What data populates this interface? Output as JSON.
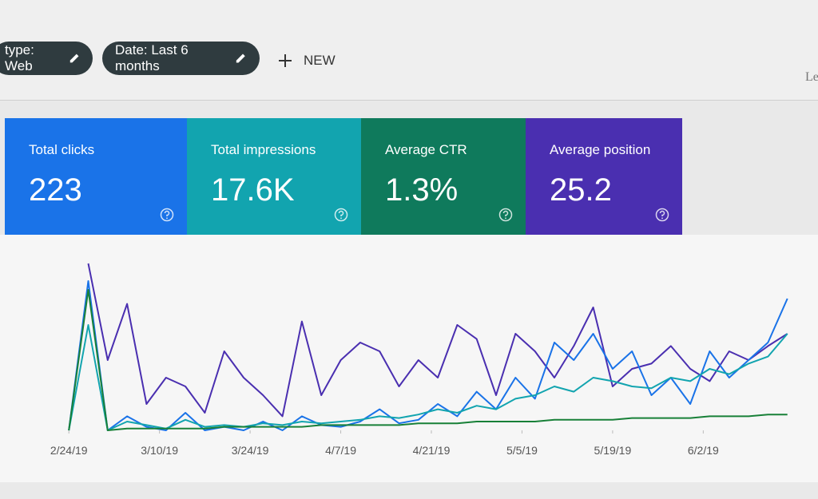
{
  "header": {
    "chips": [
      "type: Web",
      "Date: Last 6 months"
    ],
    "new_button": "NEW",
    "partial_text": "Le"
  },
  "cards": [
    {
      "label": "Total clicks",
      "value": "223",
      "color": "#1a73e8"
    },
    {
      "label": "Total impressions",
      "value": "17.6K",
      "color": "#12a4af"
    },
    {
      "label": "Average CTR",
      "value": "1.3%",
      "color": "#0f7a5c"
    },
    {
      "label": "Average position",
      "value": "25.2",
      "color": "#4a2fb0"
    }
  ],
  "chart_data": {
    "type": "line",
    "x": [
      0,
      3,
      6,
      9,
      12,
      15,
      18,
      21,
      24,
      27,
      30,
      33,
      36,
      39,
      42,
      45,
      48,
      51,
      54,
      57,
      60,
      63,
      66,
      69,
      72,
      75,
      78,
      81,
      84,
      87,
      90,
      93,
      96,
      99,
      102,
      105,
      108,
      111
    ],
    "xlim": [
      -2,
      114
    ],
    "ylim": [
      0,
      100
    ],
    "xticks": [
      {
        "value": 0,
        "label": "2/24/19"
      },
      {
        "value": 14,
        "label": "3/10/19"
      },
      {
        "value": 28,
        "label": "3/24/19"
      },
      {
        "value": 42,
        "label": "4/7/19"
      },
      {
        "value": 56,
        "label": "4/21/19"
      },
      {
        "value": 70,
        "label": "5/5/19"
      },
      {
        "value": 84,
        "label": "5/19/19"
      },
      {
        "value": 98,
        "label": "6/2/19"
      }
    ],
    "series": [
      {
        "color": "#4a2fb0",
        "values": [
          null,
          95,
          40,
          72,
          15,
          30,
          25,
          10,
          45,
          30,
          20,
          8,
          62,
          20,
          40,
          50,
          45,
          25,
          40,
          30,
          60,
          52,
          20,
          55,
          45,
          30,
          48,
          70,
          25,
          35,
          38,
          48,
          35,
          28,
          45,
          40,
          48,
          55
        ]
      },
      {
        "color": "#1a73e8",
        "values": [
          0,
          85,
          0,
          8,
          2,
          0,
          10,
          0,
          2,
          0,
          5,
          0,
          8,
          3,
          2,
          5,
          12,
          4,
          6,
          15,
          8,
          22,
          12,
          30,
          18,
          50,
          40,
          55,
          35,
          45,
          20,
          30,
          15,
          45,
          30,
          40,
          50,
          75
        ]
      },
      {
        "color": "#12a4af",
        "values": [
          0,
          60,
          0,
          5,
          3,
          1,
          6,
          2,
          3,
          2,
          4,
          3,
          5,
          4,
          5,
          6,
          8,
          7,
          9,
          12,
          10,
          14,
          12,
          18,
          20,
          25,
          22,
          30,
          28,
          25,
          24,
          30,
          28,
          35,
          32,
          38,
          42,
          55
        ]
      },
      {
        "color": "#188038",
        "values": [
          0,
          80,
          0,
          1,
          1,
          1,
          1,
          1,
          2,
          2,
          2,
          2,
          2,
          3,
          3,
          3,
          3,
          3,
          4,
          4,
          4,
          5,
          5,
          5,
          5,
          6,
          6,
          6,
          6,
          7,
          7,
          7,
          7,
          8,
          8,
          8,
          9,
          9
        ]
      }
    ]
  }
}
